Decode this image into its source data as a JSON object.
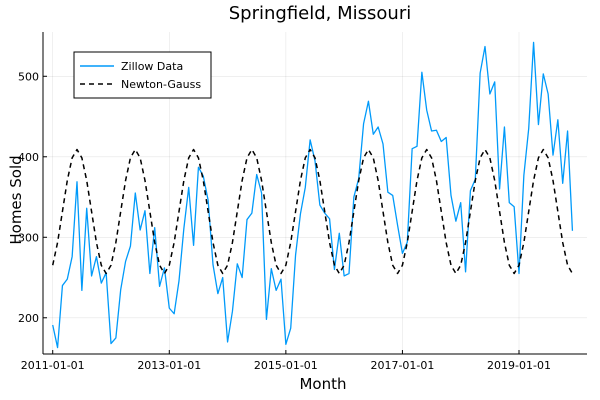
{
  "chart_data": {
    "type": "line",
    "title": "Springfield, Missouri",
    "xlabel": "Month",
    "ylabel": "Homes Sold",
    "xlim": [
      "2010-11-01",
      "2020-03-01"
    ],
    "ylim": [
      155,
      555
    ],
    "xticks": [
      "2011-01-01",
      "2013-01-01",
      "2015-01-01",
      "2017-01-01",
      "2019-01-01"
    ],
    "yticks": [
      200,
      300,
      400,
      500
    ],
    "grid": true,
    "legend_position": "top-left",
    "series": [
      {
        "name": "Zillow Data",
        "color": "#009AFA",
        "dash": "solid",
        "x": [
          "2011-01-01",
          "2011-02-01",
          "2011-03-01",
          "2011-04-01",
          "2011-05-01",
          "2011-06-01",
          "2011-07-01",
          "2011-08-01",
          "2011-09-01",
          "2011-10-01",
          "2011-11-01",
          "2011-12-01",
          "2012-01-01",
          "2012-02-01",
          "2012-03-01",
          "2012-04-01",
          "2012-05-01",
          "2012-06-01",
          "2012-07-01",
          "2012-08-01",
          "2012-09-01",
          "2012-10-01",
          "2012-11-01",
          "2012-12-01",
          "2013-01-01",
          "2013-02-01",
          "2013-03-01",
          "2013-04-01",
          "2013-05-01",
          "2013-06-01",
          "2013-07-01",
          "2013-08-01",
          "2013-09-01",
          "2013-10-01",
          "2013-11-01",
          "2013-12-01",
          "2014-01-01",
          "2014-02-01",
          "2014-03-01",
          "2014-04-01",
          "2014-05-01",
          "2014-06-01",
          "2014-07-01",
          "2014-08-01",
          "2014-09-01",
          "2014-10-01",
          "2014-11-01",
          "2014-12-01",
          "2015-01-01",
          "2015-02-01",
          "2015-03-01",
          "2015-04-01",
          "2015-05-01",
          "2015-06-01",
          "2015-07-01",
          "2015-08-01",
          "2015-09-01",
          "2015-10-01",
          "2015-11-01",
          "2015-12-01",
          "2016-01-01",
          "2016-02-01",
          "2016-03-01",
          "2016-04-01",
          "2016-05-01",
          "2016-06-01",
          "2016-07-01",
          "2016-08-01",
          "2016-09-01",
          "2016-10-01",
          "2016-11-01",
          "2016-12-01",
          "2017-01-01",
          "2017-02-01",
          "2017-03-01",
          "2017-04-01",
          "2017-05-01",
          "2017-06-01",
          "2017-07-01",
          "2017-08-01",
          "2017-09-01",
          "2017-10-01",
          "2017-11-01",
          "2017-12-01",
          "2018-01-01",
          "2018-02-01",
          "2018-03-01",
          "2018-04-01",
          "2018-05-01",
          "2018-06-01",
          "2018-07-01",
          "2018-08-01",
          "2018-09-01",
          "2018-10-01",
          "2018-11-01",
          "2018-12-01",
          "2019-01-01",
          "2019-02-01",
          "2019-03-01",
          "2019-04-01",
          "2019-05-01",
          "2019-06-01",
          "2019-07-01",
          "2019-08-01",
          "2019-09-01",
          "2019-10-01",
          "2019-11-01",
          "2019-12-01"
        ],
        "y": [
          191,
          163,
          240,
          248,
          276,
          369,
          234,
          336,
          252,
          276,
          243,
          256,
          168,
          175,
          235,
          270,
          289,
          355,
          309,
          333,
          255,
          312,
          239,
          262,
          212,
          205,
          246,
          311,
          362,
          290,
          387,
          376,
          346,
          266,
          230,
          250,
          170,
          208,
          267,
          250,
          322,
          330,
          378,
          355,
          198,
          261,
          234,
          248,
          167,
          187,
          278,
          329,
          362,
          421,
          395,
          340,
          330,
          323,
          260,
          305,
          252,
          255,
          350,
          373,
          441,
          469,
          428,
          437,
          416,
          356,
          352,
          315,
          280,
          294,
          410,
          413,
          505,
          458,
          432,
          433,
          419,
          424,
          352,
          320,
          343,
          257,
          358,
          372,
          504,
          537,
          478,
          493,
          360,
          437,
          343,
          338,
          255,
          377,
          435,
          542,
          440,
          503,
          478,
          402,
          446,
          367,
          432,
          308
        ]
      },
      {
        "name": "Newton-Gauss",
        "color": "#000000",
        "dash": "dashed",
        "fit": {
          "mean": 332,
          "amplitude": 77,
          "period_months": 12,
          "peak_month_offset": 5
        }
      }
    ]
  }
}
